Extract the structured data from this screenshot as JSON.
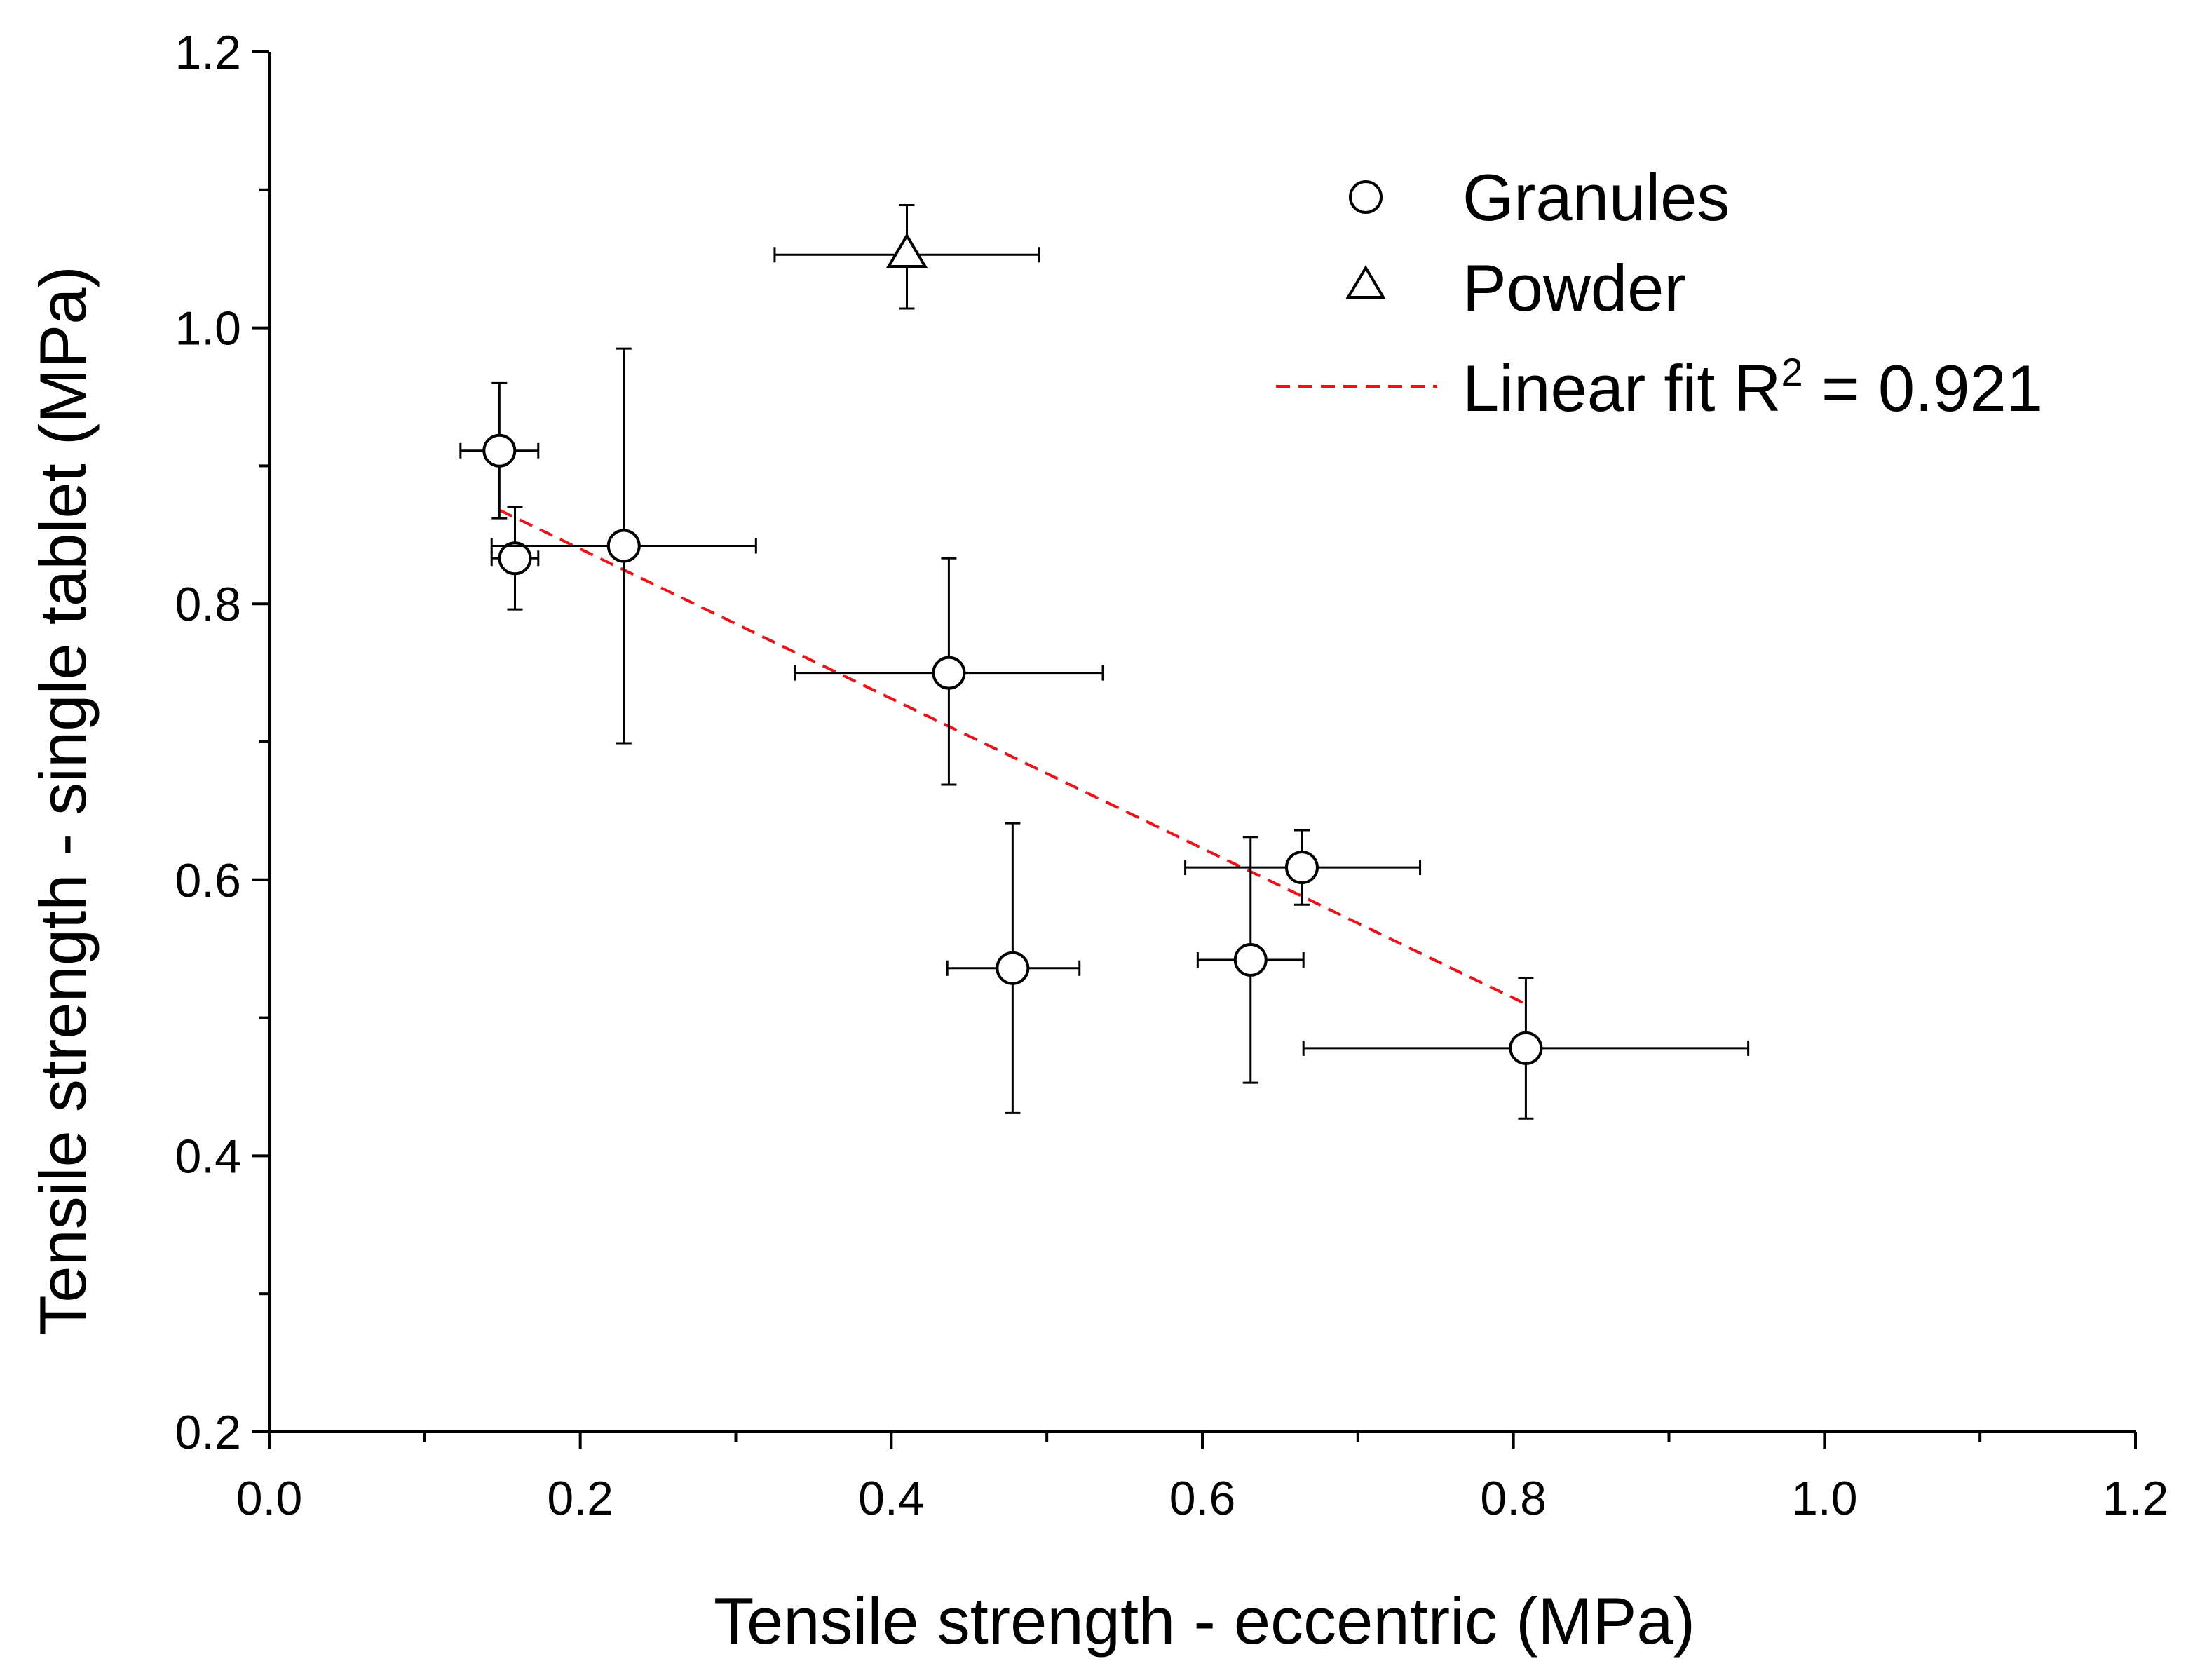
{
  "chart_data": {
    "type": "scatter",
    "xlabel": "Tensile strength - eccentric (MPa)",
    "ylabel": "Tensile strength - single tablet (MPa)",
    "xlim": [
      0.0,
      1.2
    ],
    "ylim": [
      0.2,
      1.2
    ],
    "xticks": [
      "0.0",
      "0.2",
      "0.4",
      "0.6",
      "0.8",
      "1.0",
      "1.2"
    ],
    "yticks": [
      "0.2",
      "0.4",
      "0.6",
      "0.8",
      "1.0",
      "1.2"
    ],
    "xtick_values": [
      0.0,
      0.2,
      0.4,
      0.6,
      0.8,
      1.0,
      1.2
    ],
    "ytick_values": [
      0.2,
      0.4,
      0.6,
      0.8,
      1.0,
      1.2
    ],
    "x_minor_step": 0.1,
    "y_minor_step": 0.1,
    "series": [
      {
        "name": "Granules",
        "marker": "circle",
        "points": [
          {
            "x": 0.148,
            "y": 0.911,
            "xlow": 0.123,
            "xhigh": 0.173,
            "ylow": 0.862,
            "yhigh": 0.96
          },
          {
            "x": 0.158,
            "y": 0.833,
            "xlow": 0.143,
            "xhigh": 0.173,
            "ylow": 0.796,
            "yhigh": 0.87
          },
          {
            "x": 0.228,
            "y": 0.842,
            "xlow": 0.143,
            "xhigh": 0.313,
            "ylow": 0.699,
            "yhigh": 0.985
          },
          {
            "x": 0.437,
            "y": 0.75,
            "xlow": 0.338,
            "xhigh": 0.536,
            "ylow": 0.669,
            "yhigh": 0.833
          },
          {
            "x": 0.478,
            "y": 0.536,
            "xlow": 0.436,
            "xhigh": 0.521,
            "ylow": 0.431,
            "yhigh": 0.641
          },
          {
            "x": 0.631,
            "y": 0.542,
            "xlow": 0.597,
            "xhigh": 0.665,
            "ylow": 0.453,
            "yhigh": 0.631
          },
          {
            "x": 0.664,
            "y": 0.609,
            "xlow": 0.589,
            "xhigh": 0.74,
            "ylow": 0.582,
            "yhigh": 0.636
          },
          {
            "x": 0.808,
            "y": 0.478,
            "xlow": 0.665,
            "xhigh": 0.951,
            "ylow": 0.427,
            "yhigh": 0.529
          }
        ]
      },
      {
        "name": "Powder",
        "marker": "triangle",
        "points": [
          {
            "x": 0.41,
            "y": 1.053,
            "xlow": 0.325,
            "xhigh": 0.495,
            "ylow": 1.014,
            "yhigh": 1.089
          }
        ]
      }
    ],
    "fit": {
      "name_prefix": "Linear fit R",
      "name_sup": "2",
      "name_suffix": " = 0.921",
      "x": [
        0.148,
        0.808
      ],
      "y": [
        0.868,
        0.51
      ],
      "color": "#e8141c"
    },
    "legend_position": "top-right"
  }
}
